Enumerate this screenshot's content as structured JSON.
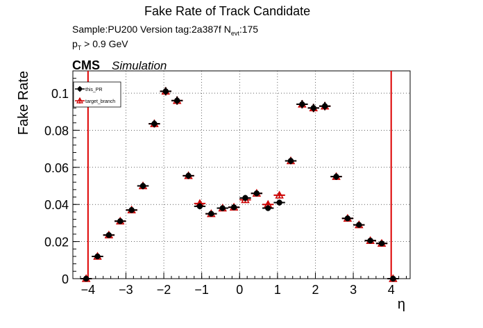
{
  "header": {
    "title": "Fake Rate of Track Candidate",
    "sample_line_prefix": "Sample:PU200   Version tag:2a387f  N",
    "sample_line_sub": "evt",
    "sample_line_suffix": ":175",
    "pt_prefix": "p",
    "pt_sub": "T",
    "pt_suffix": " > 0.9 GeV",
    "cms_label": "CMS",
    "simulation_label": "Simulation"
  },
  "chart_data": {
    "type": "scatter",
    "xlabel": "η",
    "ylabel": "Fake Rate",
    "xlim": [
      -4.4,
      4.5
    ],
    "ylim": [
      0,
      0.112
    ],
    "x_ticks": [
      -4,
      -3,
      -2,
      -1,
      0,
      1,
      2,
      3,
      4
    ],
    "x_tick_labels": [
      "−4",
      "−3",
      "−2",
      "−1",
      "0",
      "1",
      "2",
      "3",
      "4"
    ],
    "y_ticks": [
      0,
      0.02,
      0.04,
      0.06,
      0.08,
      0.1
    ],
    "y_tick_labels": [
      "0",
      "0.02",
      "0.04",
      "0.06",
      "0.08",
      "0.1"
    ],
    "grid": true,
    "legend_position": "top-left",
    "vertical_lines": [
      -4,
      4
    ],
    "bin_half_width": 0.15,
    "x": [
      -4.05,
      -3.75,
      -3.45,
      -3.15,
      -2.85,
      -2.55,
      -2.25,
      -1.95,
      -1.65,
      -1.35,
      -1.05,
      -0.75,
      -0.45,
      -0.15,
      0.15,
      0.45,
      0.75,
      1.05,
      1.35,
      1.65,
      1.95,
      2.25,
      2.55,
      2.85,
      3.15,
      3.45,
      3.75,
      4.05
    ],
    "series": [
      {
        "name": "this_PR",
        "color": "#000000",
        "marker": "filled-circle",
        "values": [
          0.0,
          0.012,
          0.0235,
          0.031,
          0.037,
          0.05,
          0.0835,
          0.101,
          0.096,
          0.0555,
          0.039,
          0.035,
          0.038,
          0.0385,
          0.0435,
          0.046,
          0.038,
          0.041,
          0.0635,
          0.094,
          0.092,
          0.093,
          0.055,
          0.0325,
          0.029,
          0.0205,
          0.019,
          0.0
        ],
        "errors": [
          0.001,
          0.0013,
          0.0015,
          0.0015,
          0.0016,
          0.0018,
          0.002,
          0.0022,
          0.0022,
          0.0018,
          0.0016,
          0.0015,
          0.0015,
          0.0015,
          0.0016,
          0.0016,
          0.0015,
          0.0016,
          0.0018,
          0.0022,
          0.0022,
          0.0022,
          0.0018,
          0.0015,
          0.0015,
          0.0014,
          0.0013,
          0.001
        ]
      },
      {
        "name": "target_branch",
        "color": "#cc0000",
        "marker": "open-triangle",
        "values": [
          0.0,
          0.012,
          0.0235,
          0.031,
          0.037,
          0.05,
          0.0835,
          0.101,
          0.096,
          0.0555,
          0.0405,
          0.035,
          0.038,
          0.0385,
          0.0425,
          0.046,
          0.04,
          0.045,
          0.0635,
          0.094,
          0.092,
          0.093,
          0.055,
          0.0325,
          0.029,
          0.0205,
          0.019,
          0.0
        ],
        "errors": [
          0.001,
          0.0013,
          0.0015,
          0.0015,
          0.0016,
          0.0018,
          0.002,
          0.0022,
          0.0022,
          0.0018,
          0.0016,
          0.0015,
          0.0015,
          0.0015,
          0.0016,
          0.0016,
          0.0015,
          0.0016,
          0.0018,
          0.0022,
          0.0022,
          0.0022,
          0.0018,
          0.0015,
          0.0015,
          0.0014,
          0.0013,
          0.001
        ]
      }
    ]
  }
}
